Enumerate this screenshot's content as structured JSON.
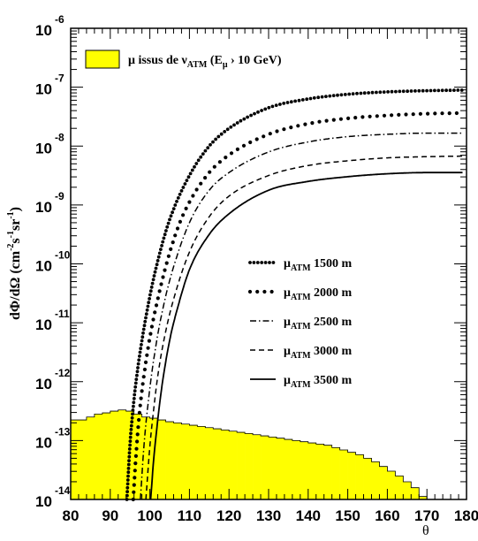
{
  "chart_data": {
    "type": "line",
    "title": "",
    "xlabel": "θ",
    "ylabel": {
      "main": "dΦ/dΩ (cm",
      "exp1": "-2",
      "mid1": "s",
      "exp2": "-1",
      "mid2": "sr",
      "exp3": "-1",
      "end": ")"
    },
    "xlim": [
      80,
      180
    ],
    "ylim_log10": [
      -14,
      -6
    ],
    "x_ticks": [
      "80",
      "90",
      "100",
      "110",
      "120",
      "130",
      "140",
      "150",
      "160",
      "170",
      "180"
    ],
    "y_ticks": [
      {
        "base": "10",
        "exp": "-6",
        "log": -6
      },
      {
        "base": "10",
        "exp": "-7",
        "log": -7
      },
      {
        "base": "10",
        "exp": "-8",
        "log": -8
      },
      {
        "base": "10",
        "exp": "-9",
        "log": -9
      },
      {
        "base": "10",
        "exp": "-10",
        "log": -10
      },
      {
        "base": "10",
        "exp": "-11",
        "log": -11
      },
      {
        "base": "10",
        "exp": "-12",
        "log": -12
      },
      {
        "base": "10",
        "exp": "-13",
        "log": -13
      },
      {
        "base": "10",
        "exp": "-14",
        "log": -14
      }
    ],
    "neutrino_histogram": {
      "label": {
        "mu": "μ",
        "main": " issus de ν",
        "sub1": "ATM",
        "paren": " (E",
        "sub2": "μ",
        "end": " › 10 GeV)"
      },
      "color": "#ffff00",
      "bin_width": 2,
      "bins_x": [
        80,
        82,
        84,
        86,
        88,
        90,
        92,
        94,
        96,
        98,
        100,
        102,
        104,
        106,
        108,
        110,
        112,
        114,
        116,
        118,
        120,
        122,
        124,
        126,
        128,
        130,
        132,
        134,
        136,
        138,
        140,
        142,
        144,
        146,
        148,
        150,
        152,
        154,
        156,
        158,
        160,
        162,
        164,
        166,
        168,
        170,
        172,
        174,
        176,
        178
      ],
      "log_values": [
        -12.65,
        -12.65,
        -12.6,
        -12.55,
        -12.53,
        -12.5,
        -12.48,
        -12.5,
        -12.55,
        -12.6,
        -12.62,
        -12.65,
        -12.68,
        -12.7,
        -12.72,
        -12.74,
        -12.76,
        -12.78,
        -12.8,
        -12.82,
        -12.84,
        -12.86,
        -12.88,
        -12.9,
        -12.92,
        -12.94,
        -12.96,
        -12.98,
        -13.0,
        -13.02,
        -13.04,
        -13.06,
        -13.08,
        -13.12,
        -13.16,
        -13.2,
        -13.24,
        -13.3,
        -13.36,
        -13.44,
        -13.52,
        -13.6,
        -13.7,
        -13.8,
        -13.95,
        -14.05,
        -14.2,
        -14.35,
        -14.5,
        -14.5
      ]
    },
    "series": [
      {
        "name": {
          "mu": "μ",
          "sub": "ATM",
          "rest": " 1500 m"
        },
        "style": "dense-dots",
        "x": [
          94.2,
          95,
          96,
          97,
          98,
          100,
          102,
          105,
          110,
          115,
          120,
          130,
          140,
          150,
          160,
          170,
          179
        ],
        "log_y": [
          -14,
          -13.05,
          -12.3,
          -11.75,
          -11.3,
          -10.55,
          -9.95,
          -9.25,
          -8.5,
          -8.0,
          -7.7,
          -7.35,
          -7.2,
          -7.12,
          -7.08,
          -7.06,
          -7.05
        ]
      },
      {
        "name": {
          "mu": "μ",
          "sub": "ATM",
          "rest": " 2000 m"
        },
        "style": "sparse-dots",
        "x": [
          95.8,
          96.5,
          97.5,
          98.5,
          100,
          102,
          104,
          107,
          110,
          115,
          120,
          130,
          140,
          150,
          160,
          170,
          179
        ],
        "log_y": [
          -14,
          -13.25,
          -12.45,
          -11.9,
          -11.25,
          -10.6,
          -10.05,
          -9.4,
          -8.95,
          -8.45,
          -8.15,
          -7.8,
          -7.62,
          -7.53,
          -7.48,
          -7.45,
          -7.44
        ]
      },
      {
        "name": {
          "mu": "μ",
          "sub": "ATM",
          "rest": " 2500 m"
        },
        "style": "dash-dot",
        "x": [
          97.6,
          98.5,
          99.5,
          100.5,
          102,
          104,
          106,
          110,
          115,
          120,
          130,
          140,
          150,
          160,
          170,
          179
        ],
        "log_y": [
          -14,
          -13.1,
          -12.4,
          -11.85,
          -11.2,
          -10.55,
          -10.05,
          -9.3,
          -8.75,
          -8.45,
          -8.1,
          -7.93,
          -7.84,
          -7.8,
          -7.78,
          -7.78
        ]
      },
      {
        "name": {
          "mu": "μ",
          "sub": "ATM",
          "rest": " 3000 m"
        },
        "style": "dashed",
        "x": [
          99.0,
          100,
          101,
          102,
          104,
          106,
          110,
          115,
          120,
          130,
          140,
          150,
          160,
          170,
          179
        ],
        "log_y": [
          -14,
          -13.1,
          -12.45,
          -11.9,
          -11.15,
          -10.6,
          -9.8,
          -9.2,
          -8.85,
          -8.5,
          -8.33,
          -8.25,
          -8.2,
          -8.18,
          -8.17
        ]
      },
      {
        "name": {
          "mu": "μ",
          "sub": "ATM",
          "rest": " 3500 m"
        },
        "style": "solid",
        "x": [
          100.2,
          101,
          102,
          103,
          105,
          107,
          110,
          115,
          120,
          130,
          140,
          150,
          160,
          170,
          179
        ],
        "log_y": [
          -14,
          -13.3,
          -12.65,
          -12.1,
          -11.3,
          -10.75,
          -10.1,
          -9.5,
          -9.15,
          -8.75,
          -8.6,
          -8.52,
          -8.47,
          -8.45,
          -8.45
        ]
      }
    ]
  }
}
